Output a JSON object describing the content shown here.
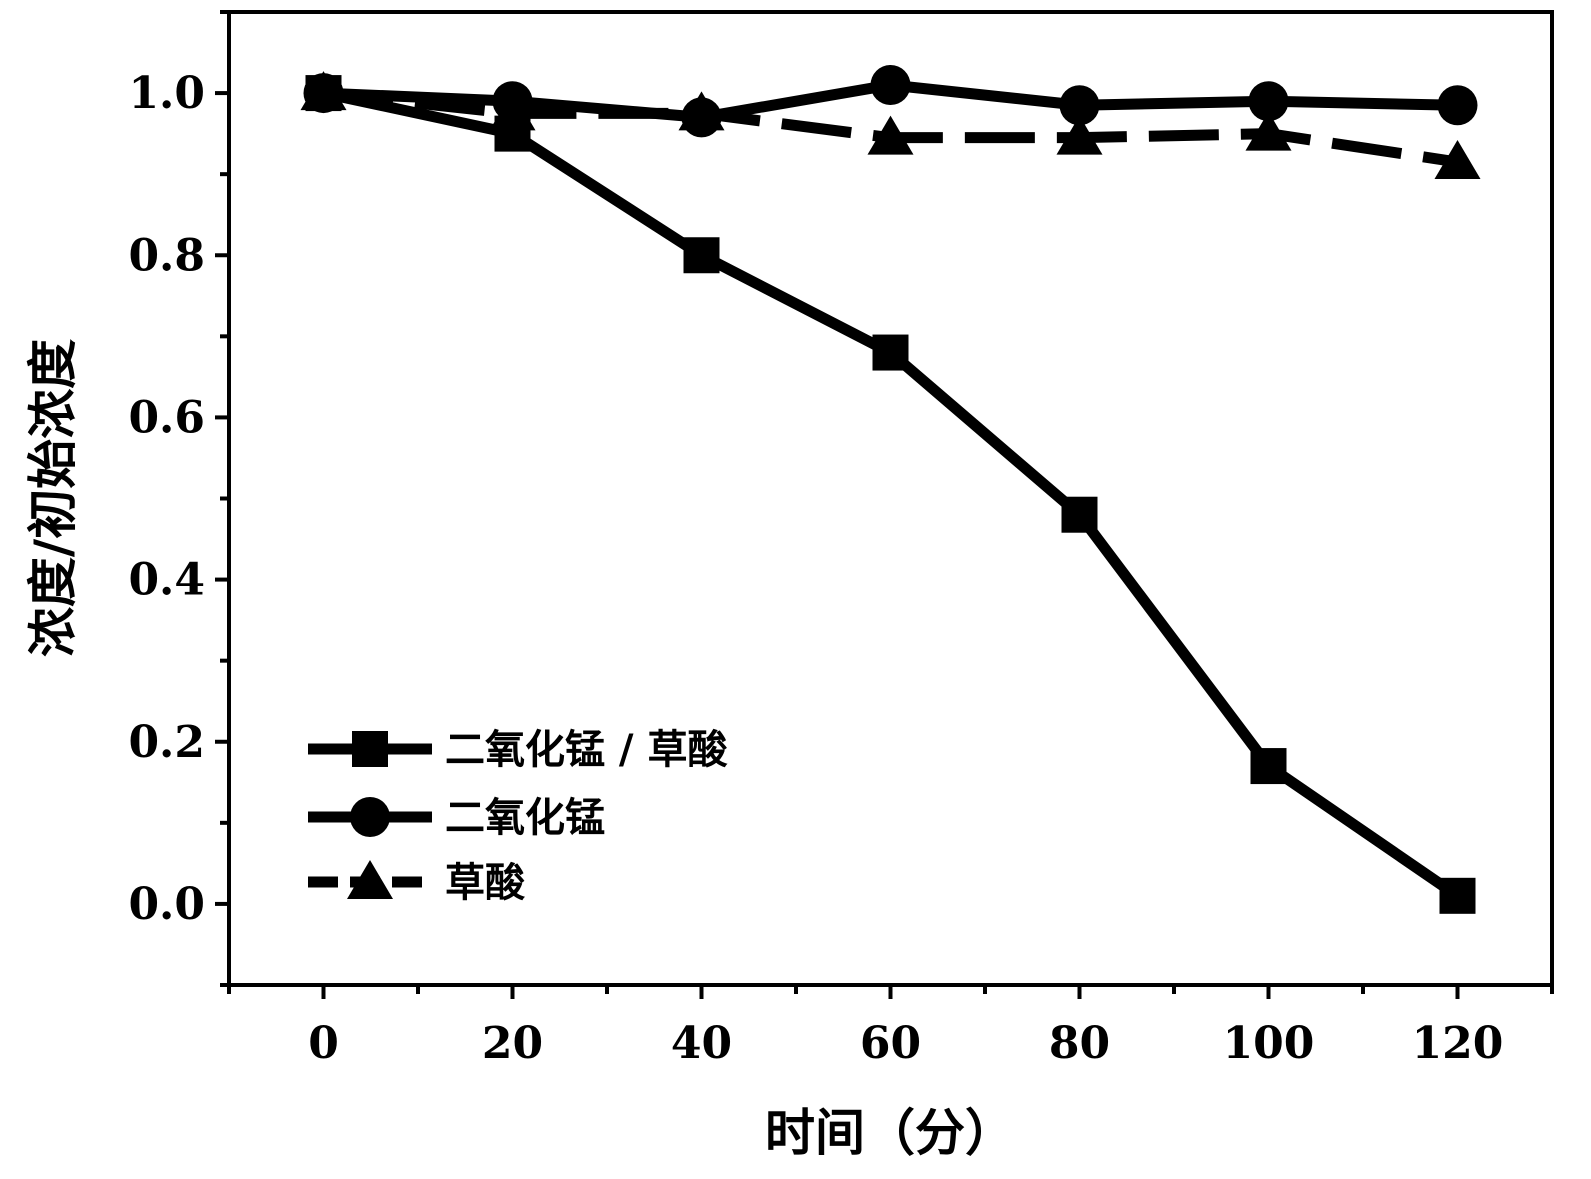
{
  "chart_data": {
    "type": "line",
    "title": "",
    "xlabel": "时间（分）",
    "ylabel": "浓度/初始浓度",
    "x": [
      0,
      20,
      40,
      60,
      80,
      100,
      120
    ],
    "xlim": [
      -10,
      130
    ],
    "ylim": [
      -0.1,
      1.1
    ],
    "x_ticks": [
      "0",
      "20",
      "40",
      "60",
      "80",
      "100",
      "120"
    ],
    "y_ticks": [
      "0.0",
      "0.2",
      "0.4",
      "0.6",
      "0.8",
      "1.0"
    ],
    "grid": false,
    "legend_position": "bottom-left",
    "series": [
      {
        "name": "二氧化锰 / 草酸",
        "marker": "square",
        "line": "solid",
        "values": [
          1.0,
          0.95,
          0.8,
          0.68,
          0.48,
          0.17,
          0.01
        ]
      },
      {
        "name": "二氧化锰",
        "marker": "circle",
        "line": "solid",
        "values": [
          1.0,
          0.99,
          0.97,
          1.01,
          0.985,
          0.99,
          0.985
        ]
      },
      {
        "name": "草酸",
        "marker": "triangle",
        "line": "dashed",
        "values": [
          1.0,
          0.975,
          0.975,
          0.945,
          0.945,
          0.95,
          0.915
        ]
      }
    ],
    "color": "#000000"
  }
}
